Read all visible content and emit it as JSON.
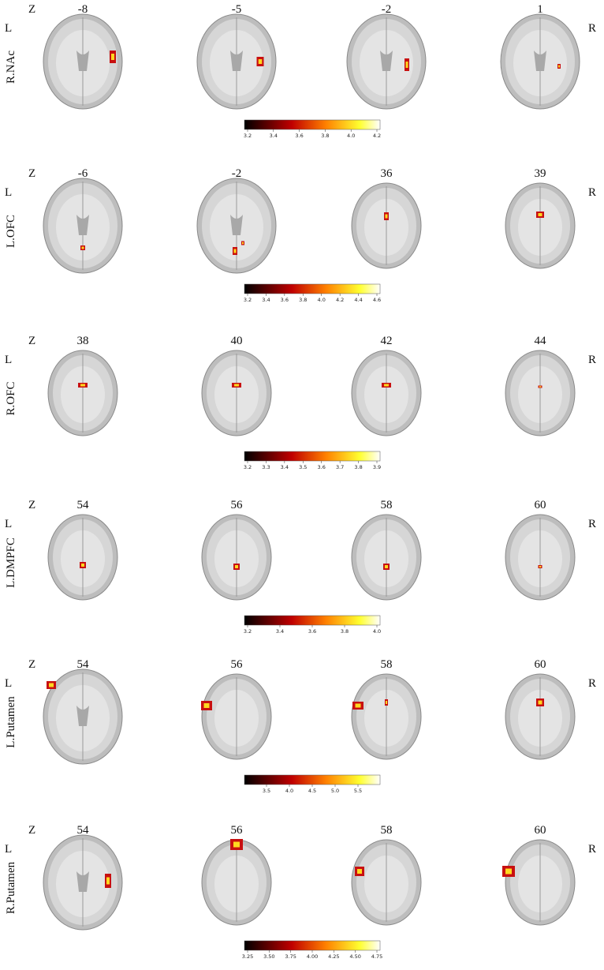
{
  "rows": [
    {
      "label": "R.NAc",
      "z": "Z",
      "left": "L",
      "right": "R",
      "slices": [
        "-8",
        "-5",
        "-2",
        "1"
      ],
      "colorbar_ticks": [
        "3.2",
        "3.4",
        "3.6",
        "3.8",
        "4.0",
        "4.2"
      ]
    },
    {
      "label": "L.OFC",
      "z": "Z",
      "left": "L",
      "right": "R",
      "slices": [
        "-6",
        "-2",
        "36",
        "39"
      ],
      "colorbar_ticks": [
        "3.2",
        "3.4",
        "3.6",
        "3.8",
        "4.0",
        "4.2",
        "4.4",
        "4.6"
      ]
    },
    {
      "label": "R.OFC",
      "z": "Z",
      "left": "L",
      "right": "R",
      "slices": [
        "38",
        "40",
        "42",
        "44"
      ],
      "colorbar_ticks": [
        "3.2",
        "3.3",
        "3.4",
        "3.5",
        "3.6",
        "3.7",
        "3.8",
        "3.9"
      ]
    },
    {
      "label": "L.DMPFC",
      "z": "Z",
      "left": "L",
      "right": "R",
      "slices": [
        "54",
        "56",
        "58",
        "60"
      ],
      "colorbar_ticks": [
        "3.2",
        "3.4",
        "3.6",
        "3.8",
        "4.0"
      ]
    },
    {
      "label": "L.Putamen",
      "z": "Z",
      "left": "L",
      "right": "R",
      "slices": [
        "54",
        "56",
        "58",
        "60"
      ],
      "colorbar_ticks": [
        "3.5",
        "4.0",
        "4.5",
        "5.0",
        "5.5"
      ]
    },
    {
      "label": "R.Putamen",
      "z": "Z",
      "left": "L",
      "right": "R",
      "slices": [
        "54",
        "56",
        "58",
        "60"
      ],
      "colorbar_ticks": [
        "3.25",
        "3.50",
        "3.75",
        "4.00",
        "4.25",
        "4.50",
        "4.75"
      ]
    }
  ]
}
